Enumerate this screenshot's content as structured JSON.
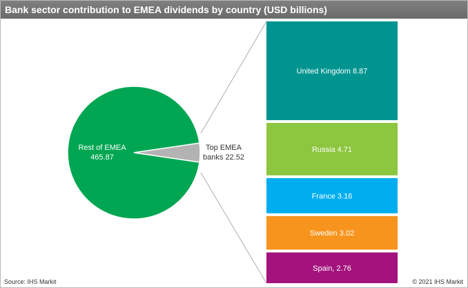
{
  "header": {
    "title": "Bank sector contribution to EMEA dividends by country (USD billions)"
  },
  "footer": {
    "source": "Source:  IHS Markit",
    "copyright": "© 2021 IHS Markit"
  },
  "colors": {
    "rest": "#00a651",
    "top": "#b3b3b3",
    "united_kingdom": "#009490",
    "russia": "#8dc63f",
    "france": "#00aeef",
    "sweden": "#f7941d",
    "spain": "#a3127d",
    "header_bg": "#7a7a7a"
  },
  "chart_data": {
    "type": "pie",
    "title": "Bank sector contribution to EMEA dividends by country (USD billions)",
    "pie": {
      "slices": [
        {
          "key": "rest",
          "label": "Rest of EMEA",
          "value": 465.87,
          "value_text": "465.87"
        },
        {
          "key": "top",
          "label": "Top EMEA",
          "label2": "banks 22.52",
          "value": 22.52,
          "value_text": "22.52"
        }
      ]
    },
    "bar_of_pie": {
      "type": "stacked_bar",
      "segments": [
        {
          "key": "united_kingdom",
          "label": "United Kingdom 8.87",
          "value": 8.87
        },
        {
          "key": "russia",
          "label": "Russia 4.71",
          "value": 4.71
        },
        {
          "key": "france",
          "label": "France 3.16",
          "value": 3.16
        },
        {
          "key": "sweden",
          "label": "Sweden 3.02",
          "value": 3.02
        },
        {
          "key": "spain",
          "label": "Spain, 2.76",
          "value": 2.76
        }
      ]
    }
  }
}
